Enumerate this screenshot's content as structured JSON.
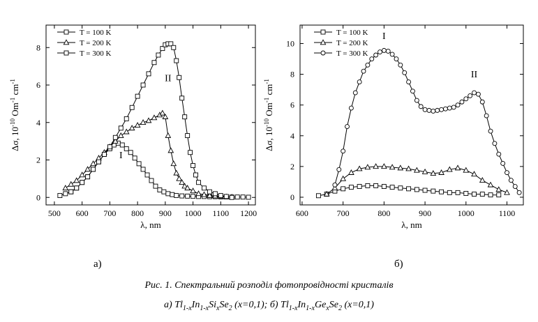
{
  "panel_labels": {
    "a": "а)",
    "b": "б)"
  },
  "caption": {
    "line1": "Рис. 1. Спектральний розподіл фотопровідності кристалів",
    "line2_a": "а) Tl",
    "line2_a_sub1": "1-x",
    "line2_a_mid1": "In",
    "line2_a_sub2": "1-x",
    "line2_a_mid2": "Si",
    "line2_a_sub3": "x",
    "line2_a_mid3": "Se",
    "line2_a_sub4": "2",
    "line2_a_end": " (x=0,1); ",
    "line2_b": "б) Tl",
    "line2_b_sub1": "1-x",
    "line2_b_mid1": "In",
    "line2_b_sub2": "1-x",
    "line2_b_mid2": "Ge",
    "line2_b_sub3": "x",
    "line2_b_mid3": "Se",
    "line2_b_sub4": "2",
    "line2_b_end": " (x=0,1)"
  },
  "chart_data": [
    {
      "type": "line",
      "panel": "а)",
      "xlabel": "λ, nm",
      "ylabel_main": "Δσ, 10",
      "ylabel_sup1": "-10",
      "ylabel_mid": "Om",
      "ylabel_sup2": "-1",
      "ylabel_end": "cm",
      "ylabel_sup3": "-1",
      "xlim": [
        470,
        1225
      ],
      "ylim": [
        -0.4,
        9.2
      ],
      "xticks": [
        500,
        600,
        700,
        800,
        900,
        1000,
        1100,
        1200
      ],
      "yticks": [
        0,
        2,
        4,
        6,
        8
      ],
      "annotations": [
        {
          "text": "I",
          "x": 740,
          "y": 2.1
        },
        {
          "text": "II",
          "x": 910,
          "y": 6.2
        }
      ],
      "series": [
        {
          "name": "T = 100 K",
          "marker": "square",
          "x": [
            520,
            540,
            560,
            580,
            600,
            620,
            640,
            660,
            680,
            700,
            715,
            730,
            745,
            760,
            775,
            790,
            805,
            820,
            835,
            850,
            865,
            880,
            895,
            910,
            925,
            940,
            960,
            980,
            1000,
            1020,
            1040,
            1060,
            1080,
            1100,
            1120,
            1140,
            1160,
            1180,
            1200
          ],
          "y": [
            0.1,
            0.2,
            0.3,
            0.5,
            0.8,
            1.1,
            1.5,
            1.9,
            2.3,
            2.6,
            2.8,
            2.9,
            2.8,
            2.6,
            2.4,
            2.1,
            1.8,
            1.5,
            1.2,
            0.9,
            0.6,
            0.4,
            0.3,
            0.2,
            0.15,
            0.1,
            0.08,
            0.07,
            0.06,
            0.05,
            0.05,
            0.04,
            0.04,
            0.03,
            0.03,
            0.02,
            0.02,
            0.02,
            0.01
          ]
        },
        {
          "name": "T = 200 K",
          "marker": "triangle",
          "x": [
            540,
            560,
            580,
            600,
            620,
            640,
            660,
            680,
            700,
            720,
            740,
            760,
            780,
            800,
            820,
            840,
            860,
            880,
            890,
            900,
            910,
            920,
            930,
            940,
            950,
            960,
            970,
            980,
            1000,
            1020,
            1040,
            1060,
            1080,
            1100,
            1120,
            1140
          ],
          "y": [
            0.5,
            0.7,
            0.9,
            1.2,
            1.5,
            1.8,
            2.1,
            2.4,
            2.7,
            3.0,
            3.3,
            3.5,
            3.7,
            3.85,
            4.0,
            4.1,
            4.25,
            4.4,
            4.5,
            4.3,
            3.3,
            2.5,
            1.8,
            1.3,
            1.0,
            0.8,
            0.6,
            0.5,
            0.35,
            0.2,
            0.15,
            0.1,
            0.08,
            0.05,
            0.03,
            0.02
          ]
        },
        {
          "name": "T = 300 K",
          "marker": "square",
          "x": [
            560,
            580,
            600,
            620,
            640,
            660,
            680,
            700,
            720,
            740,
            760,
            780,
            800,
            820,
            840,
            860,
            875,
            890,
            900,
            910,
            920,
            930,
            940,
            950,
            960,
            970,
            980,
            990,
            1000,
            1010,
            1020,
            1040,
            1060,
            1080,
            1100,
            1120,
            1140
          ],
          "y": [
            0.3,
            0.5,
            0.8,
            1.1,
            1.5,
            1.9,
            2.3,
            2.7,
            3.2,
            3.7,
            4.2,
            4.8,
            5.4,
            6.0,
            6.6,
            7.2,
            7.6,
            7.95,
            8.15,
            8.2,
            8.2,
            8.0,
            7.3,
            6.4,
            5.3,
            4.3,
            3.3,
            2.4,
            1.7,
            1.2,
            0.8,
            0.5,
            0.3,
            0.2,
            0.1,
            0.05,
            0.0
          ]
        }
      ]
    },
    {
      "type": "line",
      "panel": "б)",
      "xlabel": "λ, nm",
      "ylabel_main": "Δσ, 10",
      "ylabel_sup1": "-10",
      "ylabel_mid": "Om",
      "ylabel_sup2": "-1",
      "ylabel_end": "cm",
      "ylabel_sup3": "-1",
      "xlim": [
        595,
        1140
      ],
      "ylim": [
        -0.5,
        11.2
      ],
      "xticks": [
        600,
        700,
        800,
        900,
        1000,
        1100
      ],
      "yticks": [
        0,
        2,
        4,
        6,
        8,
        10
      ],
      "annotations": [
        {
          "text": "I",
          "x": 800,
          "y": 10.3
        },
        {
          "text": "II",
          "x": 1020,
          "y": 7.8
        }
      ],
      "series": [
        {
          "name": "T = 100 K",
          "marker": "square",
          "x": [
            640,
            660,
            680,
            700,
            720,
            740,
            760,
            780,
            800,
            820,
            840,
            860,
            880,
            900,
            920,
            940,
            960,
            980,
            1000,
            1020,
            1040,
            1060,
            1080
          ],
          "y": [
            0.1,
            0.2,
            0.4,
            0.55,
            0.65,
            0.7,
            0.75,
            0.75,
            0.7,
            0.65,
            0.6,
            0.55,
            0.5,
            0.45,
            0.4,
            0.35,
            0.3,
            0.3,
            0.25,
            0.2,
            0.2,
            0.15,
            0.15
          ]
        },
        {
          "name": "T = 200 K",
          "marker": "triangle",
          "x": [
            660,
            680,
            700,
            720,
            740,
            760,
            780,
            800,
            820,
            840,
            860,
            880,
            900,
            920,
            940,
            960,
            980,
            1000,
            1020,
            1040,
            1060,
            1080,
            1100
          ],
          "y": [
            0.2,
            0.6,
            1.2,
            1.6,
            1.85,
            1.95,
            2.0,
            2.0,
            1.95,
            1.9,
            1.85,
            1.75,
            1.65,
            1.55,
            1.6,
            1.8,
            1.9,
            1.75,
            1.5,
            1.1,
            0.8,
            0.5,
            0.3
          ]
        },
        {
          "name": "T = 300 K",
          "marker": "circle",
          "x": [
            680,
            690,
            700,
            710,
            720,
            730,
            740,
            750,
            760,
            770,
            780,
            790,
            800,
            810,
            820,
            830,
            840,
            850,
            860,
            870,
            880,
            890,
            900,
            910,
            920,
            930,
            940,
            950,
            960,
            970,
            980,
            990,
            1000,
            1010,
            1020,
            1030,
            1040,
            1050,
            1060,
            1070,
            1080,
            1090,
            1100,
            1110,
            1120,
            1130
          ],
          "y": [
            0.8,
            1.8,
            3.0,
            4.6,
            5.8,
            6.8,
            7.5,
            8.2,
            8.6,
            9.0,
            9.25,
            9.45,
            9.55,
            9.5,
            9.3,
            9.0,
            8.6,
            8.1,
            7.5,
            6.9,
            6.3,
            5.9,
            5.7,
            5.65,
            5.6,
            5.65,
            5.7,
            5.75,
            5.8,
            5.85,
            6.0,
            6.2,
            6.4,
            6.6,
            6.8,
            6.7,
            6.2,
            5.3,
            4.3,
            3.5,
            2.8,
            2.2,
            1.6,
            1.1,
            0.7,
            0.3
          ]
        }
      ]
    }
  ]
}
